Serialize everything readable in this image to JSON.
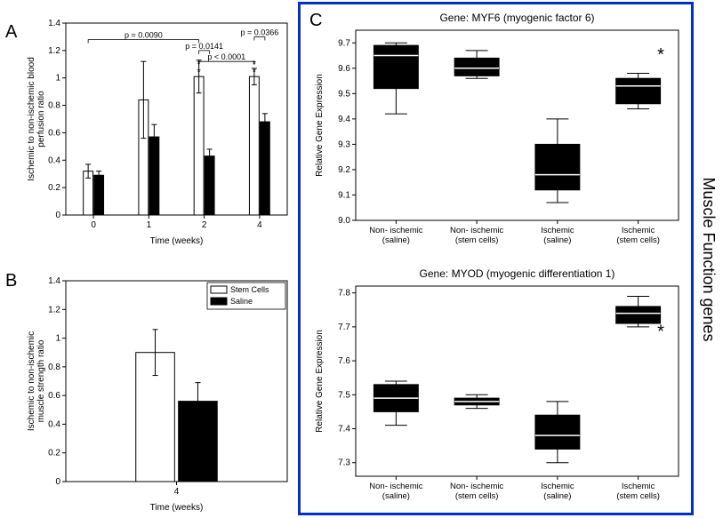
{
  "panel_labels": {
    "A": "A",
    "B": "B",
    "C": "C"
  },
  "side_label": "Muscle Function genes",
  "legend": {
    "items": [
      {
        "label": "Stem Cells",
        "fill": "#ffffff",
        "stroke": "#000000"
      },
      {
        "label": "Saline",
        "fill": "#000000",
        "stroke": "#000000"
      }
    ],
    "fontsize": 9
  },
  "chartA": {
    "type": "bar",
    "xlabel": "Time (weeks)",
    "ylabel": "Ischemic to non-ischemic blood\nperfusion ratio",
    "label_fontsize": 10,
    "categories": [
      "0",
      "1",
      "2",
      "4"
    ],
    "series": [
      {
        "name": "Stem Cells",
        "fill": "#ffffff",
        "stroke": "#000000",
        "values": [
          0.32,
          0.84,
          1.01,
          1.01
        ],
        "err": [
          0.05,
          0.28,
          0.12,
          0.06
        ]
      },
      {
        "name": "Saline",
        "fill": "#000000",
        "stroke": "#000000",
        "values": [
          0.29,
          0.57,
          0.43,
          0.68
        ],
        "err": [
          0.03,
          0.09,
          0.05,
          0.06
        ]
      }
    ],
    "ylim": [
      0,
      1.4
    ],
    "ytick_step": 0.2,
    "bar_width": 0.35,
    "annotations": [
      {
        "text": "p = 0.0090",
        "from_group": 0,
        "to_group": 2,
        "y": 1.28
      },
      {
        "text": "p = 0.0141",
        "from_group": 2,
        "to_group": 2,
        "y": 1.2
      },
      {
        "text": "p < 0.0001",
        "from_group": 2,
        "to_group": 3,
        "y": 1.12
      },
      {
        "text": "p = 0.0366",
        "from_group": 3,
        "to_group": 3,
        "y": 1.3
      }
    ],
    "stars": [
      {
        "group": 2,
        "y": 1.08,
        "text": "**"
      },
      {
        "group": 3,
        "y": 1.08,
        "text": "**"
      }
    ]
  },
  "chartB": {
    "type": "bar",
    "xlabel": "Time (weeks)",
    "ylabel": "Ischemic to non-ischemic\nmuscle strength ratio",
    "label_fontsize": 10,
    "categories": [
      "4"
    ],
    "series": [
      {
        "name": "Stem Cells",
        "fill": "#ffffff",
        "stroke": "#000000",
        "values": [
          0.9
        ],
        "err": [
          0.16
        ]
      },
      {
        "name": "Saline",
        "fill": "#000000",
        "stroke": "#000000",
        "values": [
          0.56
        ],
        "err": [
          0.13
        ]
      }
    ],
    "ylim": [
      0,
      1.4
    ],
    "ytick_step": 0.2,
    "bar_width": 0.35
  },
  "chartC1": {
    "type": "boxplot",
    "title": "Gene: MYF6 (myogenic factor 6)",
    "title_fontsize": 12,
    "ylabel": "Relative Gene Expression",
    "label_fontsize": 10,
    "categories": [
      "Non- ischemic\n(saline)",
      "Non- ischemic\n(stem cells)",
      "Ischemic\n(saline)",
      "Ischemic\n(stem cells)"
    ],
    "ylim": [
      9.0,
      9.75
    ],
    "yticks": [
      9.0,
      9.1,
      9.2,
      9.3,
      9.4,
      9.5,
      9.6,
      9.7
    ],
    "boxes": [
      {
        "q1": 9.52,
        "median": 9.65,
        "q3": 9.69,
        "wlo": 9.42,
        "whi": 9.7,
        "fill": "#000000"
      },
      {
        "q1": 9.57,
        "median": 9.6,
        "q3": 9.64,
        "wlo": 9.56,
        "whi": 9.67,
        "fill": "#000000"
      },
      {
        "q1": 9.12,
        "median": 9.18,
        "q3": 9.3,
        "wlo": 9.07,
        "whi": 9.4,
        "fill": "#000000"
      },
      {
        "q1": 9.46,
        "median": 9.53,
        "q3": 9.56,
        "wlo": 9.44,
        "whi": 9.58,
        "fill": "#000000"
      }
    ],
    "box_width": 0.55,
    "stars": [
      {
        "cat": 3,
        "y": 9.63,
        "text": "*"
      }
    ]
  },
  "chartC2": {
    "type": "boxplot",
    "title": "Gene: MYOD (myogenic differentiation 1)",
    "title_fontsize": 12,
    "ylabel": "Relative Gene Expression",
    "label_fontsize": 10,
    "categories": [
      "Non- ischemic\n(saline)",
      "Non- ischemic\n(stem cells)",
      "Ischemic\n(saline)",
      "Ischemic\n(stem cells)"
    ],
    "ylim": [
      7.26,
      7.82
    ],
    "yticks": [
      7.3,
      7.4,
      7.5,
      7.6,
      7.7,
      7.8
    ],
    "boxes": [
      {
        "q1": 7.45,
        "median": 7.49,
        "q3": 7.53,
        "wlo": 7.41,
        "whi": 7.54,
        "fill": "#000000"
      },
      {
        "q1": 7.47,
        "median": 7.48,
        "q3": 7.49,
        "wlo": 7.46,
        "whi": 7.5,
        "fill": "#000000"
      },
      {
        "q1": 7.34,
        "median": 7.38,
        "q3": 7.44,
        "wlo": 7.3,
        "whi": 7.48,
        "fill": "#000000"
      },
      {
        "q1": 7.71,
        "median": 7.74,
        "q3": 7.76,
        "wlo": 7.7,
        "whi": 7.79,
        "fill": "#000000"
      }
    ],
    "box_width": 0.55,
    "stars": [
      {
        "cat": 3,
        "y": 7.67,
        "text": "*"
      }
    ]
  },
  "colors": {
    "axis": "#000000",
    "background": "#ffffff",
    "border_blue": "#0030d0"
  }
}
